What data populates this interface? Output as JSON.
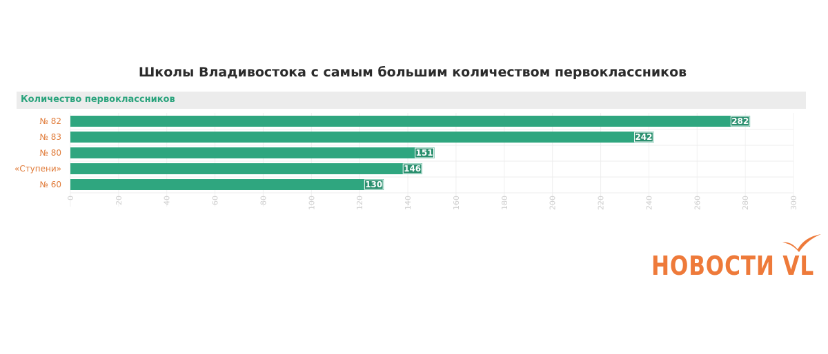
{
  "chart_data": {
    "type": "bar",
    "orientation": "horizontal",
    "title": "Школы Владивостока с самым большим количеством первоклассников",
    "series_name": "Количество первоклассников",
    "categories": [
      "№ 82",
      "№ 83",
      "№ 80",
      "«Ступени»",
      "№ 60"
    ],
    "values": [
      282,
      242,
      151,
      146,
      130
    ],
    "xlim": [
      0,
      300
    ],
    "xticks": [
      0,
      20,
      40,
      60,
      80,
      100,
      120,
      140,
      160,
      180,
      200,
      220,
      240,
      260,
      280,
      300
    ],
    "grid": true,
    "colors": {
      "bar": "#2fa67f",
      "category_label": "#e07b39",
      "series_label": "#2aa37c",
      "tick_label": "#cfcfcf"
    }
  },
  "branding": {
    "logo_text": "НОВОСТИ VL",
    "logo_color": "#ee7a3a"
  }
}
